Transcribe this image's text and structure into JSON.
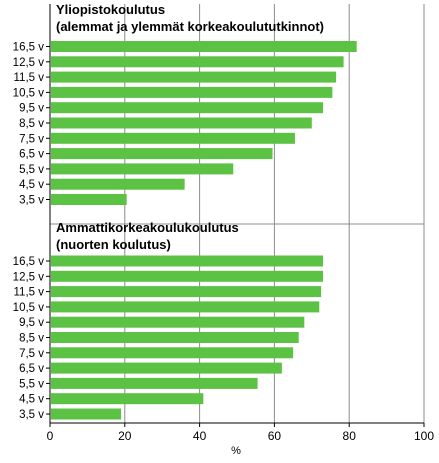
{
  "chart_data": {
    "type": "bar",
    "orientation": "horizontal",
    "xlabel": "%",
    "xlim": [
      0,
      100
    ],
    "xticks": [
      "0",
      "20",
      "40",
      "60",
      "80",
      "100"
    ],
    "grid": true,
    "bar_color": "#5cc244",
    "panels": [
      {
        "title_line1": "Yliopistokoulutus",
        "title_line2": "(alemmat ja ylemmät korkeakoulututkinnot)",
        "categories": [
          "16,5 v",
          "12,5 v",
          "11,5 v",
          "10,5 v",
          "9,5 v",
          "8,5 v",
          "7,5 v",
          "6,5 v",
          "5,5 v",
          "4,5 v",
          "3,5 v"
        ],
        "values": [
          82,
          78.5,
          76.5,
          75.5,
          73,
          70,
          65.5,
          59.5,
          49,
          36,
          20.5
        ]
      },
      {
        "title_line1": "Ammattikorkeakoulukoulutus",
        "title_line2": "(nuorten koulutus)",
        "categories": [
          "16,5 v",
          "12,5 v",
          "11,5 v",
          "10,5 v",
          "9,5 v",
          "8,5 v",
          "7,5 v",
          "6,5 v",
          "5,5 v",
          "4,5 v",
          "3,5 v"
        ],
        "values": [
          73,
          73,
          72.5,
          72,
          68,
          66.5,
          65,
          62,
          55.5,
          41,
          19
        ]
      }
    ]
  }
}
